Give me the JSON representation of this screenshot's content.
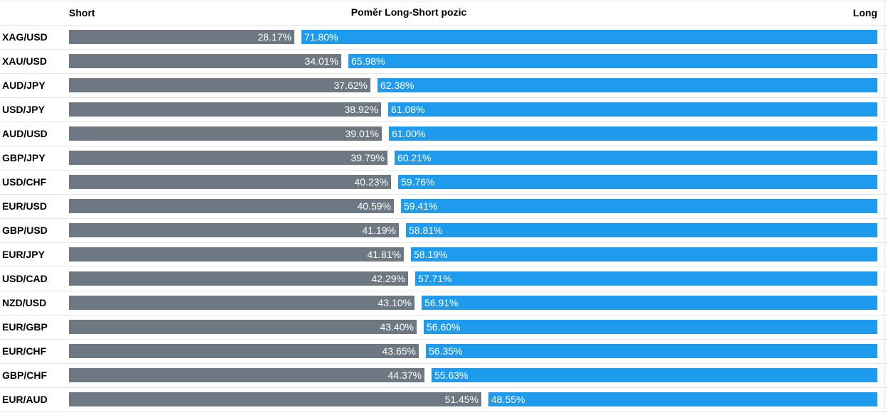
{
  "chart_data": {
    "type": "bar",
    "orientation": "horizontal",
    "stacked": true,
    "title": "Poměr Long-Short pozic",
    "left_label": "Short",
    "right_label": "Long",
    "categories": [
      "XAG/USD",
      "XAU/USD",
      "AUD/JPY",
      "USD/JPY",
      "AUD/USD",
      "GBP/JPY",
      "USD/CHF",
      "EUR/USD",
      "GBP/USD",
      "EUR/JPY",
      "USD/CAD",
      "NZD/USD",
      "EUR/GBP",
      "EUR/CHF",
      "GBP/CHF",
      "EUR/AUD"
    ],
    "series": [
      {
        "name": "Short",
        "color": "#6d7882",
        "values": [
          28.17,
          34.01,
          37.62,
          38.92,
          39.01,
          39.79,
          40.23,
          40.59,
          41.19,
          41.81,
          42.29,
          43.1,
          43.4,
          43.65,
          44.37,
          51.45
        ],
        "labels": [
          "28.17%",
          "34.01%",
          "37.62%",
          "38.92%",
          "39.01%",
          "39.79%",
          "40.23%",
          "40.59%",
          "41.19%",
          "41.81%",
          "42.29%",
          "43.10%",
          "43.40%",
          "43.65%",
          "44.37%",
          "51.45%"
        ]
      },
      {
        "name": "Long",
        "color": "#1e9bed",
        "values": [
          71.8,
          65.98,
          62.38,
          61.08,
          61.0,
          60.21,
          59.76,
          59.41,
          58.81,
          58.19,
          57.71,
          56.91,
          56.6,
          56.35,
          55.63,
          48.55
        ],
        "labels": [
          "71.80%",
          "65.98%",
          "62.38%",
          "61.08%",
          "61.00%",
          "60.21%",
          "59.76%",
          "59.41%",
          "58.81%",
          "58.19%",
          "57.71%",
          "56.91%",
          "56.60%",
          "56.35%",
          "55.63%",
          "48.55%"
        ]
      }
    ],
    "xlim": [
      0,
      100
    ],
    "grid": true,
    "legend": "none"
  }
}
